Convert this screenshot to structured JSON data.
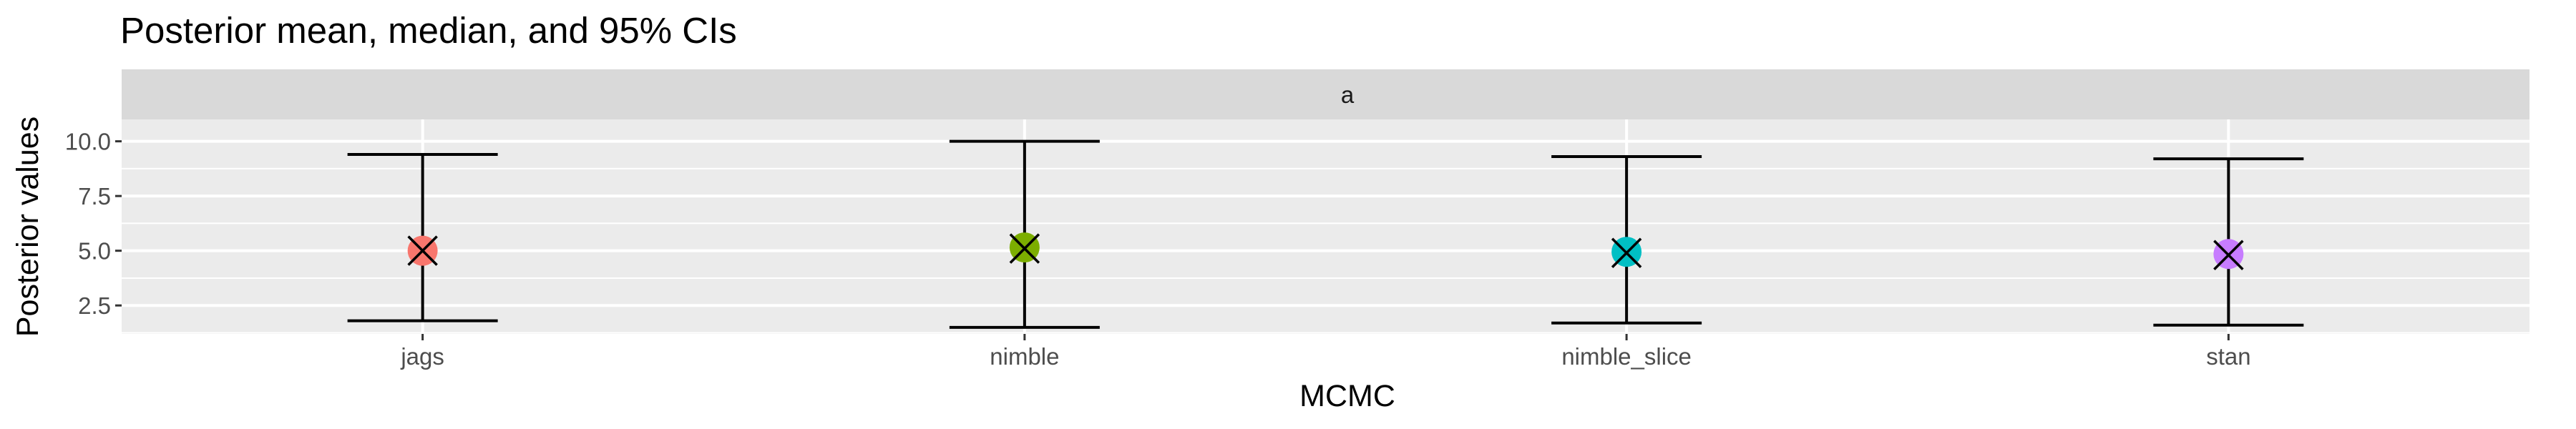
{
  "chart_data": {
    "type": "scatter",
    "title": "Posterior mean, median, and 95% CIs",
    "facet_label": "a",
    "xlabel": "MCMC",
    "ylabel": "Posterior values",
    "categories": [
      "jags",
      "nimble",
      "nimble_slice",
      "stan"
    ],
    "ylim": [
      1.2,
      11.0
    ],
    "yticks": [
      2.5,
      5.0,
      7.5,
      10.0
    ],
    "ytick_labels": [
      "2.5",
      "5.0",
      "7.5",
      "10.0"
    ],
    "grid": true,
    "legend": "none",
    "series": [
      {
        "name": "mean",
        "marker": "circle",
        "values": [
          5.0,
          5.15,
          4.95,
          4.85
        ]
      },
      {
        "name": "median",
        "marker": "x",
        "values": [
          5.0,
          5.1,
          4.9,
          4.8
        ]
      },
      {
        "name": "ci_lower",
        "values": [
          1.8,
          1.5,
          1.7,
          1.6
        ]
      },
      {
        "name": "ci_upper",
        "values": [
          9.4,
          10.0,
          9.3,
          9.2
        ]
      }
    ],
    "colors": [
      "#F8766D",
      "#7CAE00",
      "#00BFC4",
      "#C77CFF"
    ],
    "panel_color": "#EBEBEB",
    "strip_color": "#D9D9D9",
    "grid_color": "#FFFFFF",
    "bar_color": "#000000"
  }
}
